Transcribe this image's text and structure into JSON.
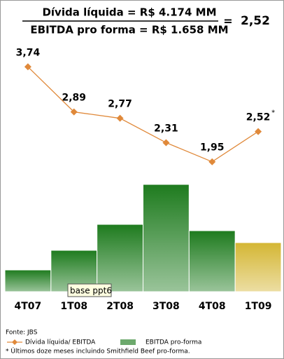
{
  "chart_data": {
    "type": "combo",
    "formula": {
      "numerator": "Dívida líquida = R$ 4.174 MM",
      "denominator": "EBITDA pro forma = R$ 1.658 MM",
      "equals": "=",
      "result": "2,52"
    },
    "categories": [
      "4T07",
      "1T08",
      "2T08",
      "3T08",
      "4T08",
      "1T09"
    ],
    "series": [
      {
        "name": "EBITDA pro-forma",
        "type": "bar",
        "color": "#1e7b1e",
        "colors": [
          "#1e7b1e",
          "#1e7b1e",
          "#1e7b1e",
          "#1e7b1e",
          "#1e7b1e",
          "#d4b633"
        ],
        "values": [
          31,
          59,
          96,
          153,
          87,
          70
        ]
      },
      {
        "name": "Dívida líquida/ EBITDA",
        "type": "line",
        "axis": "y2",
        "color": "#e0893a",
        "values": [
          3.74,
          2.89,
          2.77,
          2.31,
          1.95,
          2.52
        ],
        "value_labels": [
          "3,74",
          "2,89",
          "2,77",
          "2,31",
          "1,95",
          "2,52"
        ]
      }
    ],
    "annotation": "*",
    "tooltip": "base ppt6",
    "ylim": [
      0,
      160
    ],
    "y2lim": [
      -0.5,
      5.0
    ],
    "source": "Fonte: JBS",
    "footnote": "* Últimos doze meses incluindo Smithfield Beef pro-forma."
  }
}
